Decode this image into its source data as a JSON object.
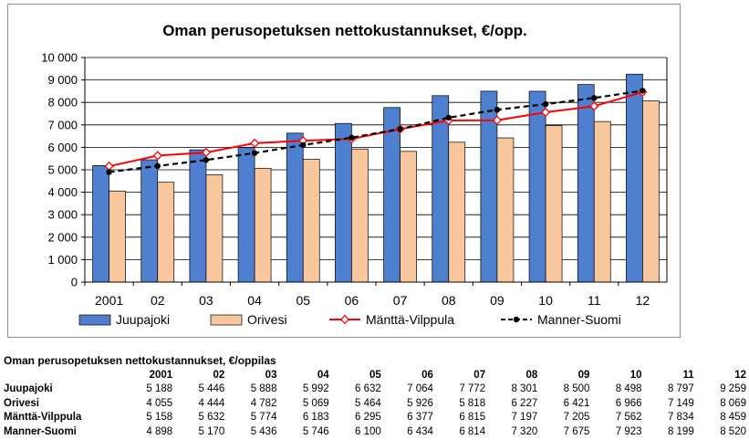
{
  "chart_data": {
    "type": "bar",
    "title": "Oman perusopetuksen nettokustannukset, €/opp.",
    "categories": [
      "2001",
      "02",
      "03",
      "04",
      "05",
      "06",
      "07",
      "08",
      "09",
      "10",
      "11",
      "12"
    ],
    "ylim": [
      0,
      10000
    ],
    "yticks": [
      "0",
      "1 000",
      "2 000",
      "3 000",
      "4 000",
      "5 000",
      "6 000",
      "7 000",
      "8 000",
      "9 000",
      "10 000"
    ],
    "grid": true,
    "legend_position": "bottom",
    "series": [
      {
        "name": "Juupajoki",
        "kind": "bar",
        "color": "#4f7fcf",
        "values": [
          5188,
          5446,
          5888,
          5992,
          6632,
          7064,
          7772,
          8301,
          8500,
          8498,
          8797,
          9259
        ]
      },
      {
        "name": "Orivesi",
        "kind": "bar",
        "color": "#f9c79e",
        "values": [
          4055,
          4444,
          4782,
          5069,
          5464,
          5926,
          5818,
          6227,
          6421,
          6966,
          7149,
          8069
        ]
      },
      {
        "name": "Mänttä-Vilppula",
        "kind": "line",
        "color": "#ff0000",
        "values": [
          5158,
          5632,
          5774,
          6183,
          6295,
          6377,
          6815,
          7197,
          7205,
          7562,
          7834,
          8459
        ]
      },
      {
        "name": "Manner-Suomi",
        "kind": "dashed-line",
        "color": "#000000",
        "values": [
          4898,
          5170,
          5436,
          5746,
          6100,
          6434,
          6814,
          7320,
          7675,
          7923,
          8199,
          8520
        ]
      }
    ]
  },
  "table": {
    "title": "Oman perusopetuksen nettokustannukset, €/oppilas",
    "columns": [
      "2001",
      "02",
      "03",
      "04",
      "05",
      "06",
      "07",
      "08",
      "09",
      "10",
      "11",
      "12"
    ],
    "rows": [
      {
        "name": "Juupajoki",
        "values": [
          "5 188",
          "5 446",
          "5 888",
          "5 992",
          "6 632",
          "7 064",
          "7 772",
          "8 301",
          "8 500",
          "8 498",
          "8 797",
          "9 259"
        ]
      },
      {
        "name": "Orivesi",
        "values": [
          "4 055",
          "4 444",
          "4 782",
          "5 069",
          "5 464",
          "5 926",
          "5 818",
          "6 227",
          "6 421",
          "6 966",
          "7 149",
          "8 069"
        ]
      },
      {
        "name": "Mänttä-Vilppula",
        "values": [
          "5 158",
          "5 632",
          "5 774",
          "6 183",
          "6 295",
          "6 377",
          "6 815",
          "7 197",
          "7 205",
          "7 562",
          "7 834",
          "8 459"
        ]
      },
      {
        "name": "Manner-Suomi",
        "values": [
          "4 898",
          "5 170",
          "5 436",
          "5 746",
          "6 100",
          "6 434",
          "6 814",
          "7 320",
          "7 675",
          "7 923",
          "8 199",
          "8 520"
        ]
      }
    ]
  }
}
